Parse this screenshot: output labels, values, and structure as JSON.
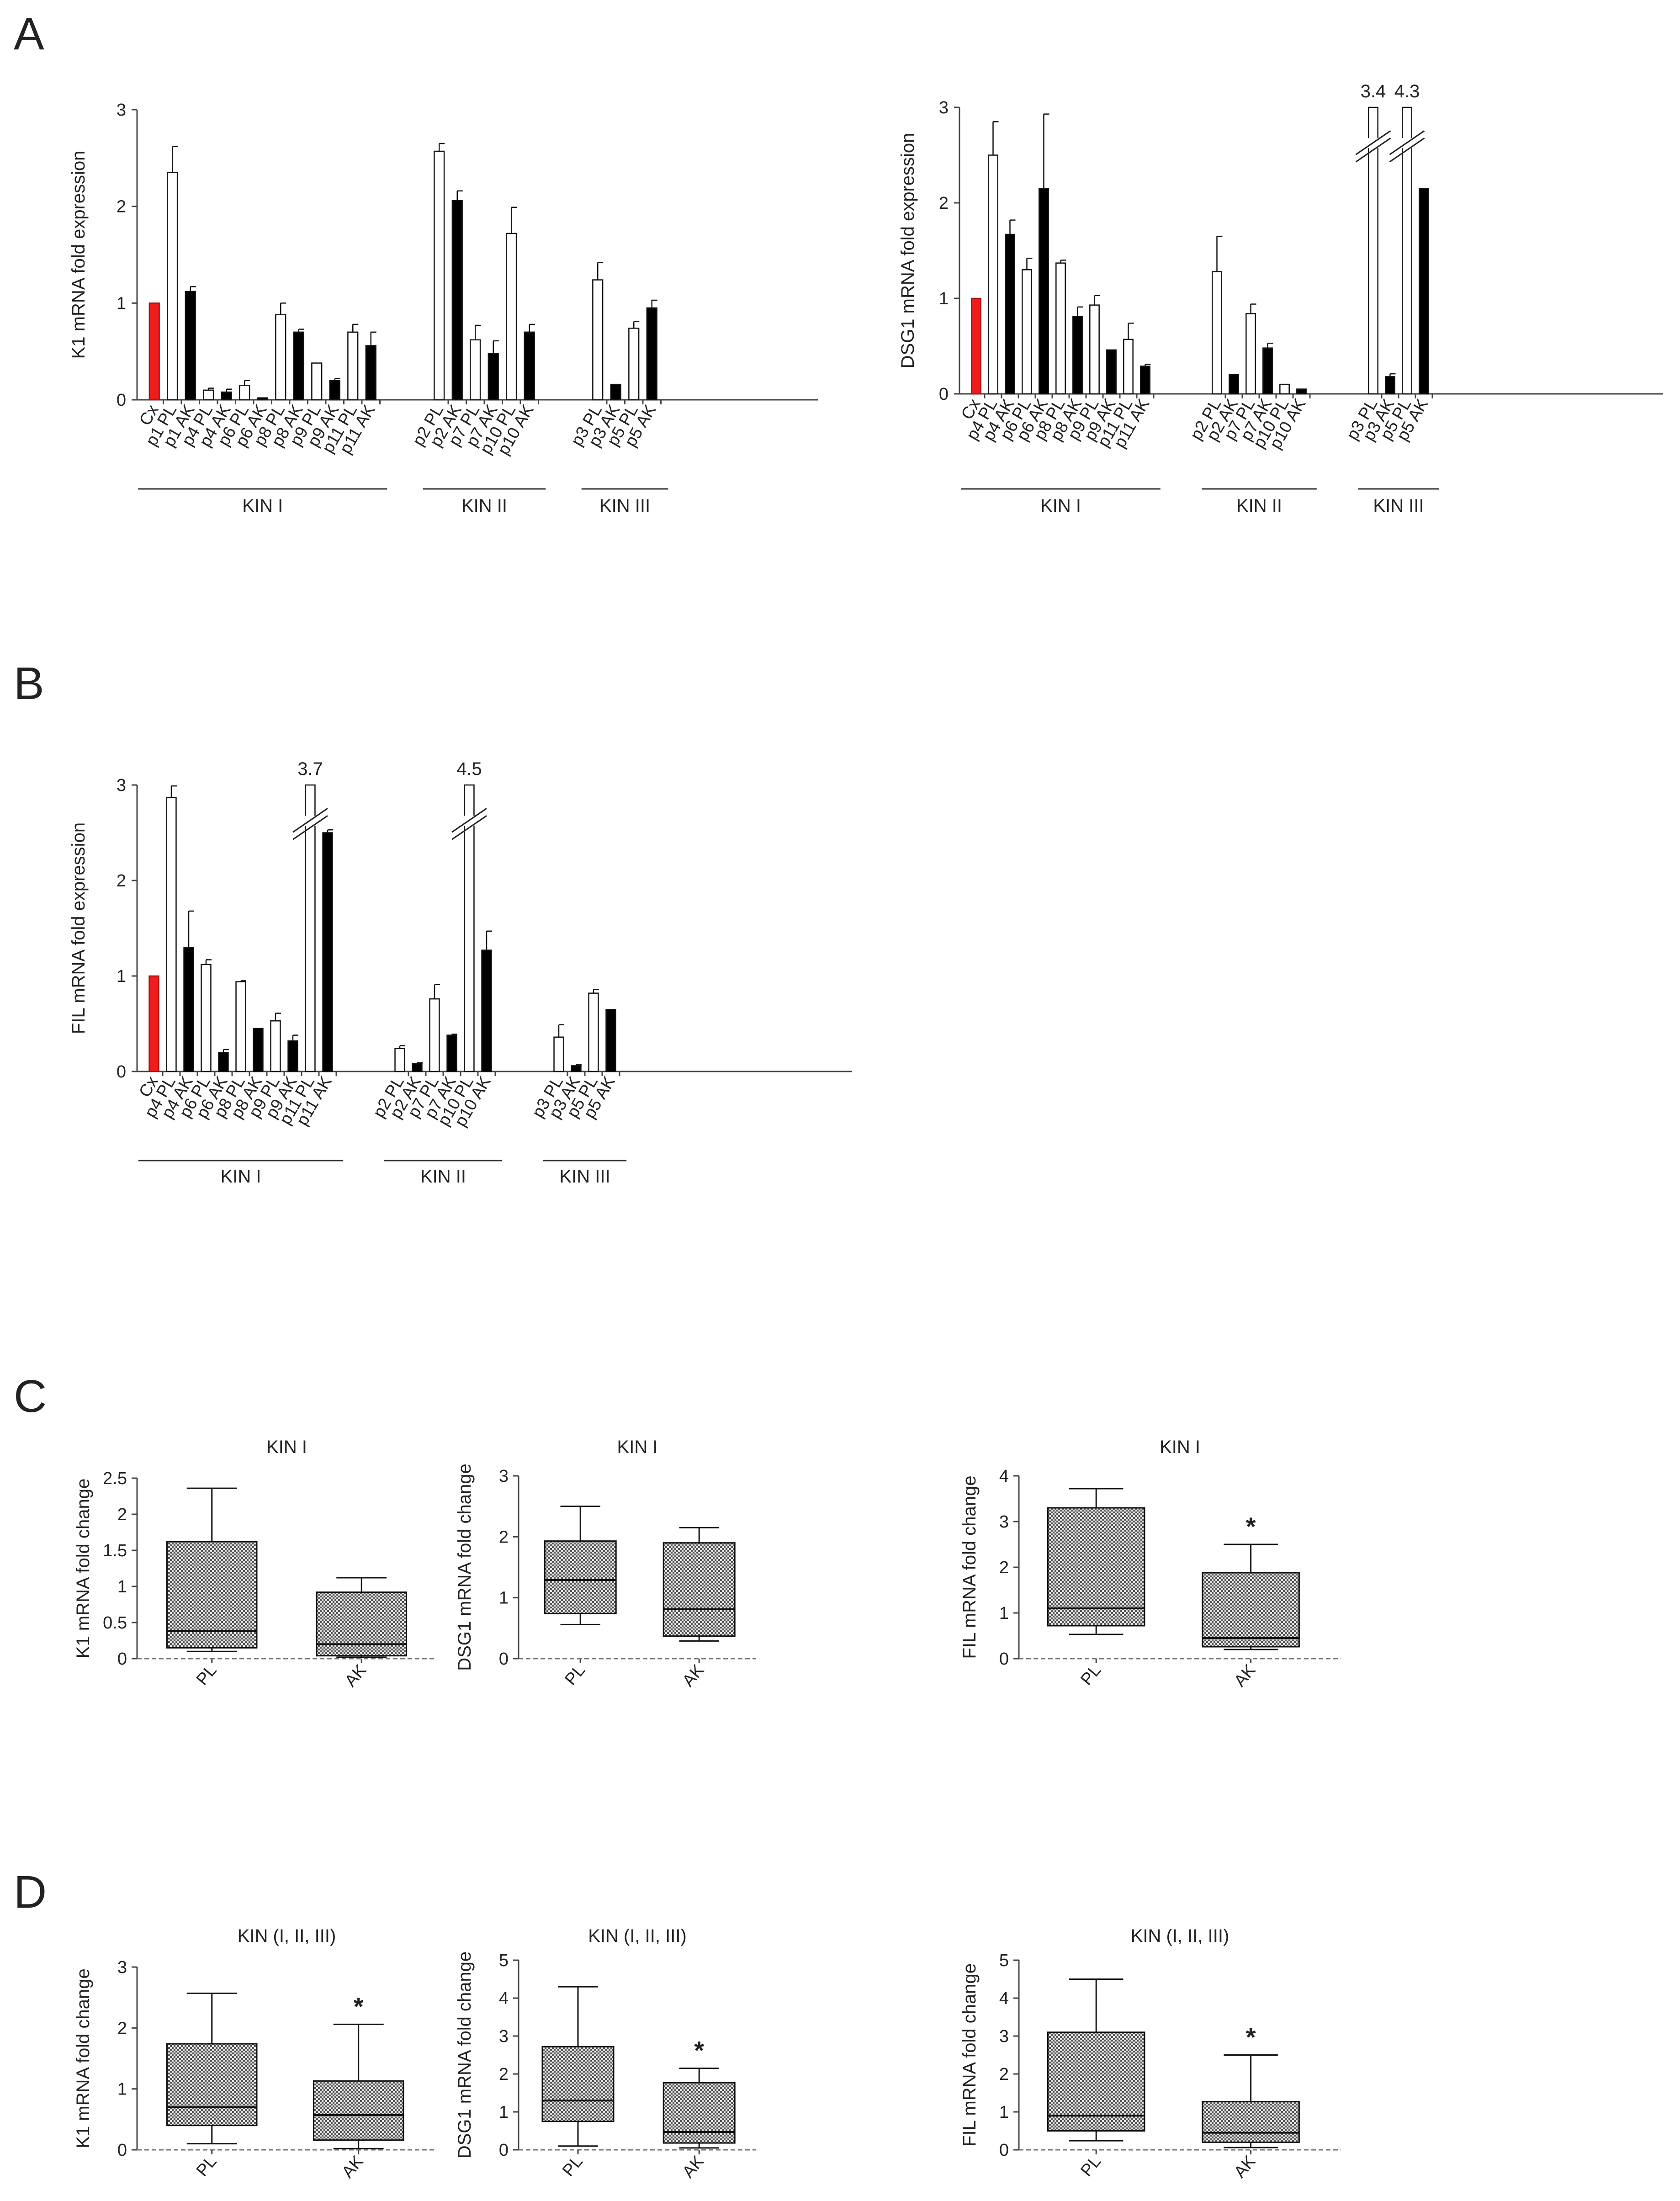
{
  "panel_letters": [
    "A",
    "B",
    "C",
    "D"
  ],
  "colors": {
    "control": "#ee1c1c",
    "pl": "#ffffff",
    "ak": "#000000",
    "box_fill": "#9a9a9a",
    "line": "#333333"
  },
  "chart_data": [
    {
      "id": "A1",
      "panel": "A",
      "type": "bar",
      "ylabel": "K1 mRNA fold expression",
      "ylim": [
        0,
        3
      ],
      "yticks": [
        0,
        1,
        2,
        3
      ],
      "categories": [
        "Cx",
        "p1 PL",
        "p1 AK",
        "p4 PL",
        "p4 AK",
        "p6 PL",
        "p6 AK",
        "p8 PL",
        "p8 AK",
        "p9 PL",
        "p9 AK",
        "p11 PL",
        "p11 AK",
        "p2 PL",
        "p2 AK",
        "p7 PL",
        "p7 AK",
        "p10 PL",
        "p10 AK",
        "p3 PL",
        "p3 AK",
        "p5 PL",
        "p5 AK"
      ],
      "values": [
        1.0,
        2.35,
        1.12,
        0.1,
        0.08,
        0.15,
        0.02,
        0.88,
        0.7,
        0.38,
        0.2,
        0.7,
        0.56,
        2.57,
        2.06,
        0.62,
        0.48,
        1.72,
        0.7,
        1.24,
        0.16,
        0.74,
        0.95
      ],
      "errors": [
        0,
        0.27,
        0.05,
        0.02,
        0.03,
        0.05,
        0,
        0.12,
        0.03,
        0,
        0.02,
        0.08,
        0.14,
        0.08,
        0.1,
        0.15,
        0.13,
        0.27,
        0.08,
        0.18,
        0,
        0.07,
        0.08
      ],
      "kinds": [
        "C",
        "P",
        "A",
        "P",
        "A",
        "P",
        "A",
        "P",
        "A",
        "P",
        "A",
        "P",
        "A",
        "P",
        "A",
        "P",
        "A",
        "P",
        "A",
        "P",
        "A",
        "P",
        "A"
      ],
      "groups": [
        {
          "label": "KIN I",
          "start": 0,
          "end": 12
        },
        {
          "label": "KIN II",
          "start": 13,
          "end": 18
        },
        {
          "label": "KIN III",
          "start": 19,
          "end": 22
        }
      ]
    },
    {
      "id": "A2",
      "panel": "A",
      "type": "bar",
      "ylabel": "DSG1 mRNA fold expression",
      "ylim": [
        0,
        3
      ],
      "yticks": [
        0,
        1,
        2,
        3
      ],
      "categories": [
        "Cx",
        "p4 PL",
        "p4 AK",
        "p6 PL",
        "p6 AK",
        "p8 PL",
        "p8 AK",
        "p9 PL",
        "p9 AK",
        "p11 PL",
        "p11 AK",
        "p2 PL",
        "p2 AK",
        "p7 PL",
        "p7 AK",
        "p10 PL",
        "p10 AK",
        "p3 PL",
        "p3 AK",
        "p5 PL",
        "p5 AK"
      ],
      "values": [
        1.0,
        2.5,
        1.67,
        1.3,
        2.15,
        1.37,
        0.81,
        0.93,
        0.46,
        0.57,
        0.29,
        1.28,
        0.2,
        0.84,
        0.48,
        0.1,
        0.05,
        3.4,
        0.18,
        4.3,
        2.15
      ],
      "errors": [
        0,
        0.35,
        0.15,
        0.12,
        0.78,
        0.03,
        0.1,
        0.1,
        0,
        0.17,
        0.02,
        0.37,
        0,
        0.1,
        0.05,
        0,
        0,
        0,
        0.03,
        0,
        0
      ],
      "kinds": [
        "C",
        "P",
        "A",
        "P",
        "A",
        "P",
        "A",
        "P",
        "A",
        "P",
        "A",
        "P",
        "A",
        "P",
        "A",
        "P",
        "A",
        "P",
        "A",
        "P",
        "A"
      ],
      "breaks": [
        {
          "index": 17,
          "label": "3.4"
        },
        {
          "index": 19,
          "label": "4.3"
        }
      ],
      "groups": [
        {
          "label": "KIN I",
          "start": 0,
          "end": 10
        },
        {
          "label": "KIN II",
          "start": 11,
          "end": 16
        },
        {
          "label": "KIN III",
          "start": 17,
          "end": 20
        }
      ]
    },
    {
      "id": "B",
      "panel": "B",
      "type": "bar",
      "ylabel": "FIL mRNA fold expression",
      "ylim": [
        0,
        3
      ],
      "yticks": [
        0,
        1,
        2,
        3
      ],
      "categories": [
        "Cx",
        "p4 PL",
        "p4 AK",
        "p6 PL",
        "p6 AK",
        "p8 PL",
        "p8 AK",
        "p9 PL",
        "p9 AK",
        "p11 PL",
        "p11 AK",
        "p2 PL",
        "p2 AK",
        "p7 PL",
        "p7 AK",
        "p10 PL",
        "p10 AK",
        "p3 PL",
        "p3 AK",
        "p5 PL",
        "p5 AK"
      ],
      "values": [
        1.0,
        2.87,
        1.3,
        1.12,
        0.2,
        0.94,
        0.45,
        0.53,
        0.32,
        3.7,
        2.5,
        0.24,
        0.08,
        0.76,
        0.38,
        4.5,
        1.27,
        0.36,
        0.06,
        0.82,
        0.65
      ],
      "errors": [
        0,
        0.12,
        0.38,
        0.05,
        0.03,
        0.01,
        0,
        0.08,
        0.06,
        0,
        0.03,
        0.03,
        0.01,
        0.15,
        0.01,
        0,
        0.2,
        0.13,
        0.01,
        0.04,
        0
      ],
      "kinds": [
        "C",
        "P",
        "A",
        "P",
        "A",
        "P",
        "A",
        "P",
        "A",
        "P",
        "A",
        "P",
        "A",
        "P",
        "A",
        "P",
        "A",
        "P",
        "A",
        "P",
        "A"
      ],
      "breaks": [
        {
          "index": 9,
          "label": "3.7"
        },
        {
          "index": 15,
          "label": "4.5"
        }
      ],
      "groups": [
        {
          "label": "KIN I",
          "start": 0,
          "end": 10
        },
        {
          "label": "KIN II",
          "start": 11,
          "end": 16
        },
        {
          "label": "KIN III",
          "start": 17,
          "end": 20
        }
      ]
    },
    {
      "id": "C1",
      "panel": "C",
      "type": "box",
      "title": "KIN I",
      "ylabel": "K1 mRNA fold change",
      "ylim": [
        0,
        2.5
      ],
      "yticks": [
        "0",
        "0.5",
        "1",
        "1.5",
        "2",
        "2.5"
      ],
      "categories": [
        "PL",
        "AK"
      ],
      "boxes": [
        {
          "min": 0.1,
          "q1": 0.15,
          "median": 0.38,
          "q3": 1.62,
          "max": 2.36,
          "star": false
        },
        {
          "min": 0.02,
          "q1": 0.04,
          "median": 0.2,
          "q3": 0.92,
          "max": 1.12,
          "star": false
        }
      ]
    },
    {
      "id": "C2",
      "panel": "C",
      "type": "box",
      "title": "KIN I",
      "ylabel": "DSG1 mRNA fold change",
      "ylim": [
        0,
        3
      ],
      "yticks": [
        "0",
        "1",
        "2",
        "3"
      ],
      "categories": [
        "PL",
        "AK"
      ],
      "boxes": [
        {
          "min": 0.56,
          "q1": 0.74,
          "median": 1.29,
          "q3": 1.93,
          "max": 2.5,
          "star": false
        },
        {
          "min": 0.29,
          "q1": 0.37,
          "median": 0.81,
          "q3": 1.9,
          "max": 2.15,
          "star": false
        }
      ]
    },
    {
      "id": "C3",
      "panel": "C",
      "type": "box",
      "title": "KIN I",
      "ylabel": "FIL mRNA fold change",
      "ylim": [
        0,
        4
      ],
      "yticks": [
        "0",
        "1",
        "2",
        "3",
        "4"
      ],
      "categories": [
        "PL",
        "AK"
      ],
      "boxes": [
        {
          "min": 0.53,
          "q1": 0.72,
          "median": 1.1,
          "q3": 3.3,
          "max": 3.72,
          "star": false
        },
        {
          "min": 0.2,
          "q1": 0.26,
          "median": 0.45,
          "q3": 1.88,
          "max": 2.5,
          "star": true
        }
      ]
    },
    {
      "id": "D1",
      "panel": "D",
      "type": "box",
      "title": "KIN (I, II, III)",
      "ylabel": "K1 mRNA fold change",
      "ylim": [
        0,
        3
      ],
      "yticks": [
        "0",
        "1",
        "2",
        "3"
      ],
      "categories": [
        "PL",
        "AK"
      ],
      "boxes": [
        {
          "min": 0.1,
          "q1": 0.4,
          "median": 0.7,
          "q3": 1.74,
          "max": 2.57,
          "star": false
        },
        {
          "min": 0.02,
          "q1": 0.16,
          "median": 0.57,
          "q3": 1.13,
          "max": 2.06,
          "star": true
        }
      ]
    },
    {
      "id": "D2",
      "panel": "D",
      "type": "box",
      "title": "KIN (I, II, III)",
      "ylabel": "DSG1 mRNA fold change",
      "ylim": [
        0,
        5
      ],
      "yticks": [
        "0",
        "1",
        "2",
        "3",
        "4",
        "5"
      ],
      "categories": [
        "PL",
        "AK"
      ],
      "boxes": [
        {
          "min": 0.1,
          "q1": 0.75,
          "median": 1.3,
          "q3": 2.72,
          "max": 4.3,
          "star": false
        },
        {
          "min": 0.05,
          "q1": 0.18,
          "median": 0.47,
          "q3": 1.77,
          "max": 2.15,
          "star": true
        }
      ]
    },
    {
      "id": "D3",
      "panel": "D",
      "type": "box",
      "title": "KIN (I, II, III)",
      "ylabel": "FIL mRNA fold change",
      "ylim": [
        0,
        5
      ],
      "yticks": [
        "0",
        "1",
        "2",
        "3",
        "4",
        "5"
      ],
      "categories": [
        "PL",
        "AK"
      ],
      "boxes": [
        {
          "min": 0.24,
          "q1": 0.5,
          "median": 0.9,
          "q3": 3.1,
          "max": 4.5,
          "star": false
        },
        {
          "min": 0.06,
          "q1": 0.2,
          "median": 0.45,
          "q3": 1.27,
          "max": 2.5,
          "star": true
        }
      ]
    }
  ]
}
